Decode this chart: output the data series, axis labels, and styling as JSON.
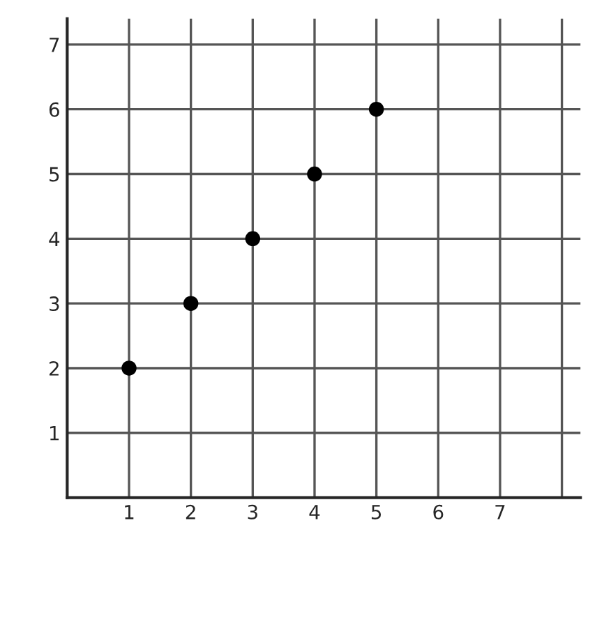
{
  "chart_data": {
    "type": "scatter",
    "x": [
      1,
      2,
      3,
      4,
      5
    ],
    "series": [
      {
        "color": "#000000",
        "values": [
          2,
          3,
          4,
          5,
          6
        ]
      }
    ],
    "xlim": [
      0,
      8.3
    ],
    "ylim": [
      0,
      7.4
    ],
    "xticks": [
      1,
      2,
      3,
      4,
      5,
      6,
      7,
      {
        "value": 8,
        "label": null
      }
    ],
    "yticks": [
      1,
      2,
      3,
      4,
      5,
      6,
      7
    ],
    "grid": true,
    "marker": "circle"
  }
}
